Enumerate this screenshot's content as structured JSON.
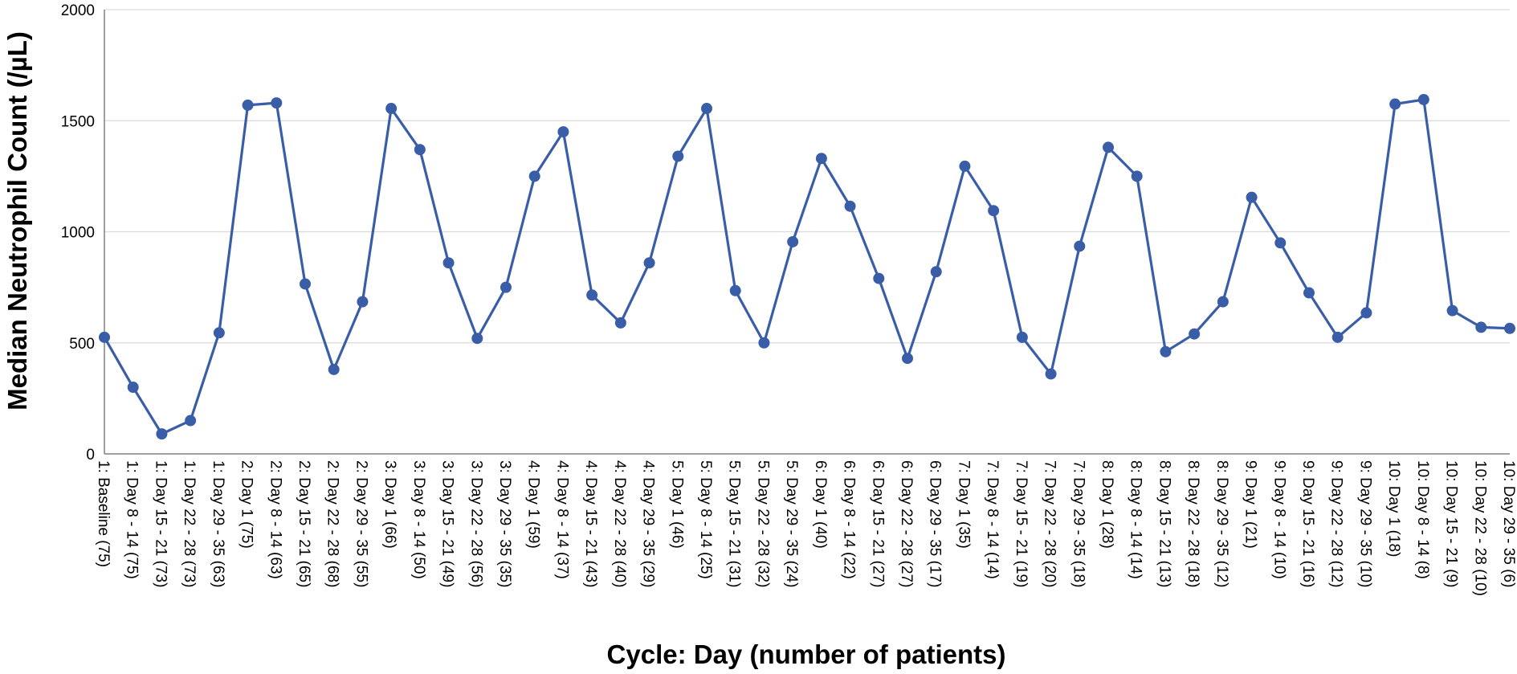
{
  "chart_data": {
    "type": "line",
    "title": "",
    "xlabel": "Cycle: Day (number of patients)",
    "ylabel": "Median Neutrophil Count (/µL)",
    "ylim": [
      0,
      2000
    ],
    "yticks": [
      0,
      500,
      1000,
      1500,
      2000
    ],
    "grid": true,
    "legend": "none",
    "colors": {
      "line": "#3A5DA8",
      "marker": "#3A5DA8",
      "grid": "#d9d9d9",
      "axis": "#808080"
    },
    "categories": [
      "1: Baseline (75)",
      "1: Day 8 - 14 (75)",
      "1: Day 15 - 21 (73)",
      "1: Day 22 - 28 (73)",
      "1: Day 29 - 35 (63)",
      "2: Day 1 (75)",
      "2: Day 8 - 14 (63)",
      "2: Day 15 - 21 (65)",
      "2: Day 22 - 28 (68)",
      "2: Day 29 - 35 (55)",
      "3: Day 1 (66)",
      "3: Day 8 - 14 (50)",
      "3: Day 15 - 21 (49)",
      "3: Day 22 - 28 (56)",
      "3: Day 29 - 35 (35)",
      "4: Day 1 (59)",
      "4: Day 8 - 14 (37)",
      "4: Day 15 - 21 (43)",
      "4: Day 22 - 28 (40)",
      "4: Day 29 - 35 (29)",
      "5: Day 1 (46)",
      "5: Day 8 - 14 (25)",
      "5: Day 15 - 21 (31)",
      "5: Day 22 - 28 (32)",
      "5: Day 29 - 35 (24)",
      "6: Day 1 (40)",
      "6: Day 8 - 14 (22)",
      "6: Day 15 - 21 (27)",
      "6: Day 22 - 28 (27)",
      "6: Day 29 - 35 (17)",
      "7: Day 1 (35)",
      "7: Day 8 - 14 (14)",
      "7: Day 15 - 21 (19)",
      "7: Day 22 - 28 (20)",
      "7: Day 29 - 35 (18)",
      "8: Day 1 (28)",
      "8: Day 8 - 14 (14)",
      "8: Day 15 - 21 (13)",
      "8: Day 22 - 28 (18)",
      "8: Day 29 - 35 (12)",
      "9: Day 1 (21)",
      "9: Day 8 - 14 (10)",
      "9: Day 15 - 21 (16)",
      "9: Day 22 - 28 (12)",
      "9: Day 29 - 35 (10)",
      "10: Day 1 (18)",
      "10: Day 8 - 14 (8)",
      "10: Day 15 - 21 (9)",
      "10: Day 22 - 28 (10)",
      "10: Day 29 - 35 (6)"
    ],
    "series": [
      {
        "values": [
          525,
          300,
          90,
          150,
          545,
          1570,
          1580,
          765,
          380,
          685,
          1555,
          1370,
          860,
          520,
          750,
          1250,
          1450,
          715,
          590,
          860,
          1340,
          1555,
          735,
          500,
          955,
          1330,
          1115,
          790,
          430,
          820,
          1295,
          1095,
          525,
          360,
          935,
          1380,
          1250,
          460,
          540,
          685,
          1155,
          950,
          725,
          525,
          635,
          1575,
          1595,
          645,
          570,
          565
        ]
      }
    ]
  }
}
